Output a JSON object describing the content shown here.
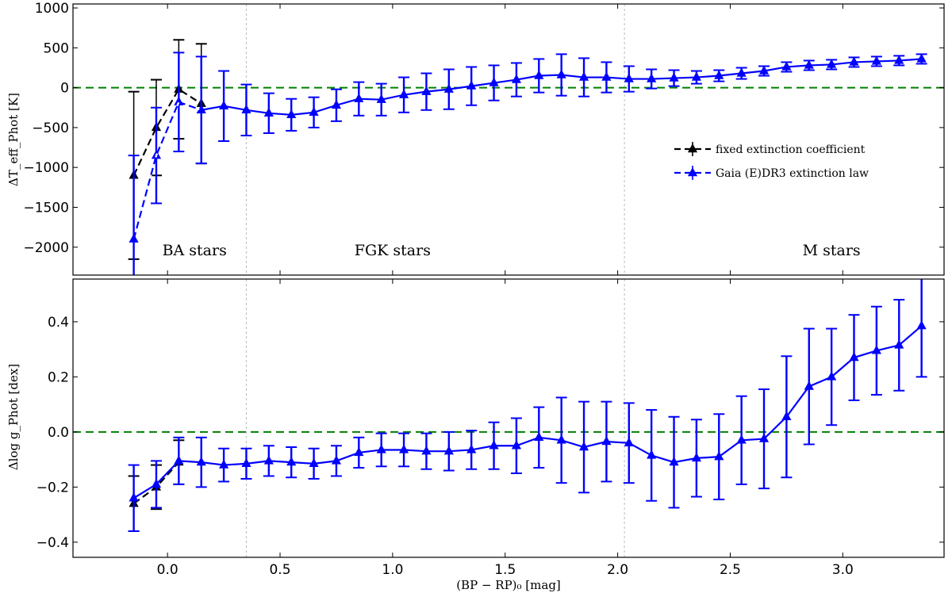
{
  "chart_data": [
    {
      "type": "line",
      "panel": "top",
      "ylabel": "ΔT_eff_Phot [K]",
      "xlim": [
        -0.42,
        3.45
      ],
      "ylim": [
        -2350,
        1050
      ],
      "yticks": [
        1000,
        500,
        0,
        -500,
        -1000,
        -1500,
        -2000
      ],
      "ytick_labels": [
        "1000",
        "500",
        "0",
        "−500",
        "−1000",
        "−1500",
        "−2000"
      ],
      "xticks": [
        0.0,
        0.5,
        1.0,
        1.5,
        2.0,
        2.5,
        3.0
      ],
      "reference_line": 0,
      "region_dividers": [
        0.35,
        2.03
      ],
      "region_labels": [
        {
          "text": "BA stars",
          "x": 0.12,
          "y": -2100
        },
        {
          "text": "FGK stars",
          "x": 1.0,
          "y": -2100
        },
        {
          "text": "M stars",
          "x": 2.95,
          "y": -2100
        }
      ],
      "legend": {
        "position": "right",
        "entries": [
          "fixed extinction coefficient",
          "Gaia (E)DR3 extinction law"
        ]
      },
      "series": [
        {
          "name": "fixed extinction coefficient",
          "color": "#000000",
          "x": [
            -0.15,
            -0.05,
            0.05,
            0.15
          ],
          "y": [
            -1100,
            -500,
            -20,
            -200
          ],
          "err": [
            1050,
            600,
            620,
            750
          ]
        },
        {
          "name": "Gaia (E)DR3 extinction law",
          "color": "#0000ff",
          "x": [
            -0.15,
            -0.05,
            0.05,
            0.15,
            0.25,
            0.35,
            0.45,
            0.55,
            0.65,
            0.75,
            0.85,
            0.95,
            1.05,
            1.15,
            1.25,
            1.35,
            1.45,
            1.55,
            1.65,
            1.75,
            1.85,
            1.95,
            2.05,
            2.15,
            2.25,
            2.35,
            2.45,
            2.55,
            2.65,
            2.75,
            2.85,
            2.95,
            3.05,
            3.15,
            3.25,
            3.35
          ],
          "y": [
            -1900,
            -850,
            -180,
            -280,
            -230,
            -280,
            -320,
            -340,
            -310,
            -220,
            -140,
            -150,
            -90,
            -50,
            -20,
            20,
            60,
            100,
            150,
            160,
            130,
            130,
            110,
            110,
            120,
            130,
            150,
            180,
            210,
            260,
            280,
            290,
            320,
            330,
            340,
            360
          ],
          "err": [
            1050,
            600,
            620,
            670,
            440,
            320,
            250,
            200,
            190,
            200,
            210,
            200,
            220,
            230,
            250,
            240,
            220,
            210,
            210,
            260,
            240,
            190,
            160,
            120,
            100,
            80,
            70,
            70,
            60,
            60,
            60,
            60,
            60,
            60,
            60,
            60
          ]
        }
      ]
    },
    {
      "type": "line",
      "panel": "bottom",
      "ylabel": "Δlog g_Phot [dex]",
      "xlabel": "(BP − RP)₀ [mag]",
      "xlim": [
        -0.42,
        3.45
      ],
      "ylim": [
        -0.455,
        0.555
      ],
      "yticks": [
        0.4,
        0.2,
        0.0,
        -0.2,
        -0.4
      ],
      "ytick_labels": [
        "0.4",
        "0.2",
        "0.0",
        "−0.2",
        "−0.4"
      ],
      "xticks": [
        0.0,
        0.5,
        1.0,
        1.5,
        2.0,
        2.5,
        3.0
      ],
      "xtick_labels": [
        "0.0",
        "0.5",
        "1.0",
        "1.5",
        "2.0",
        "2.5",
        "3.0"
      ],
      "reference_line": 0,
      "region_dividers": [
        0.35,
        2.03
      ],
      "series": [
        {
          "name": "fixed extinction coefficient",
          "color": "#000000",
          "x": [
            -0.15,
            -0.05,
            0.05
          ],
          "y": [
            -0.26,
            -0.2,
            -0.11
          ],
          "err": [
            0.1,
            0.08,
            0.08
          ]
        },
        {
          "name": "Gaia (E)DR3 extinction law",
          "color": "#0000ff",
          "x": [
            -0.15,
            -0.05,
            0.05,
            0.15,
            0.25,
            0.35,
            0.45,
            0.55,
            0.65,
            0.75,
            0.85,
            0.95,
            1.05,
            1.15,
            1.25,
            1.35,
            1.45,
            1.55,
            1.65,
            1.75,
            1.85,
            1.95,
            2.05,
            2.15,
            2.25,
            2.35,
            2.45,
            2.55,
            2.65,
            2.75,
            2.85,
            2.95,
            3.05,
            3.15,
            3.25,
            3.35
          ],
          "y": [
            -0.24,
            -0.19,
            -0.105,
            -0.11,
            -0.12,
            -0.115,
            -0.105,
            -0.11,
            -0.115,
            -0.105,
            -0.075,
            -0.065,
            -0.065,
            -0.07,
            -0.07,
            -0.065,
            -0.05,
            -0.05,
            -0.02,
            -0.03,
            -0.055,
            -0.035,
            -0.04,
            -0.085,
            -0.11,
            -0.095,
            -0.09,
            -0.03,
            -0.025,
            0.055,
            0.165,
            0.2,
            0.27,
            0.295,
            0.315,
            0.385
          ],
          "err": [
            0.12,
            0.085,
            0.085,
            0.09,
            0.06,
            0.055,
            0.055,
            0.055,
            0.055,
            0.055,
            0.055,
            0.06,
            0.06,
            0.065,
            0.07,
            0.07,
            0.085,
            0.1,
            0.11,
            0.155,
            0.165,
            0.145,
            0.145,
            0.165,
            0.165,
            0.14,
            0.155,
            0.16,
            0.18,
            0.22,
            0.21,
            0.175,
            0.155,
            0.16,
            0.165,
            0.185
          ]
        }
      ]
    }
  ]
}
